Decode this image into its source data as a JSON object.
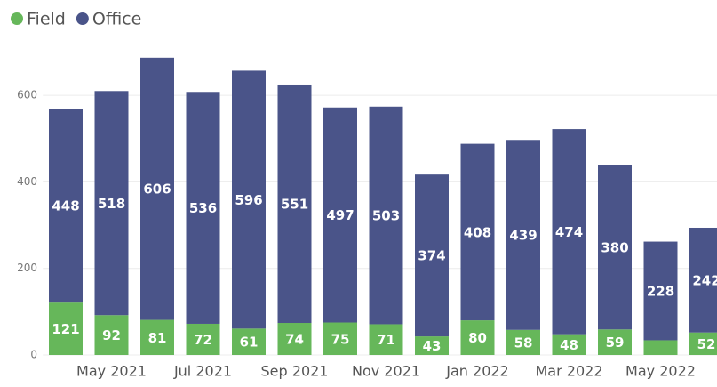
{
  "chart_data": {
    "type": "stacked_bar",
    "categories": [
      null,
      "May 2021",
      null,
      "Jul 2021",
      null,
      "Sep 2021",
      null,
      "Nov 2021",
      null,
      "Jan 2022",
      null,
      "Mar 2022",
      null,
      "May 2022",
      null
    ],
    "series": [
      {
        "name": "Field",
        "color": "#66b75a",
        "values": [
          121,
          92,
          81,
          72,
          61,
          74,
          75,
          71,
          43,
          80,
          58,
          48,
          59,
          34,
          52
        ],
        "value_labels": [
          "121",
          "92",
          "81",
          "72",
          "61",
          "74",
          "75",
          "71",
          "43",
          "80",
          "58",
          "48",
          "59",
          null,
          "52"
        ]
      },
      {
        "name": "Office",
        "color": "#4a5489",
        "values": [
          448,
          518,
          606,
          536,
          596,
          551,
          497,
          503,
          374,
          408,
          439,
          474,
          380,
          228,
          242
        ],
        "value_labels": [
          "448",
          "518",
          "606",
          "536",
          "596",
          "551",
          "497",
          "503",
          "374",
          "408",
          "439",
          "474",
          "380",
          "228",
          "242"
        ]
      }
    ],
    "ylim": [
      0,
      700
    ],
    "yticks": [
      0,
      200,
      400,
      600
    ],
    "grid": true,
    "legend": "top-left"
  }
}
